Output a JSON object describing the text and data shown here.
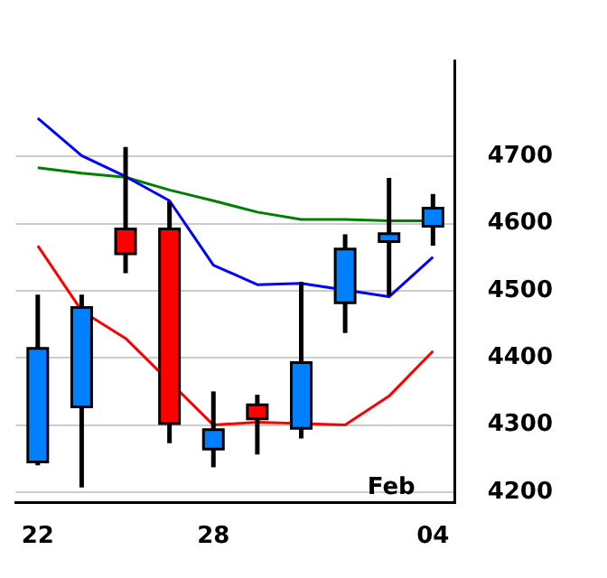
{
  "chart_data": {
    "type": "candlestick",
    "categories": [
      "22",
      null,
      null,
      null,
      "28",
      null,
      null,
      null,
      null,
      "04"
    ],
    "ohlc": [
      [
        4245,
        4494,
        4240,
        4414
      ],
      [
        4327,
        4494,
        4207,
        4475
      ],
      [
        4592,
        4714,
        4526,
        4555
      ],
      [
        4592,
        4633,
        4273,
        4302
      ],
      [
        4264,
        4350,
        4237,
        4293
      ],
      [
        4330,
        4345,
        4256,
        4309
      ],
      [
        4295,
        4513,
        4280,
        4393
      ],
      [
        4482,
        4584,
        4437,
        4562
      ],
      [
        4573,
        4668,
        4493,
        4585
      ],
      [
        4596,
        4644,
        4567,
        4623
      ]
    ],
    "colors": [
      "#0080ff",
      "#0080ff",
      "#ff0000",
      "#ff0000",
      "#0080ff",
      "#ff0000",
      "#0080ff",
      "#0080ff",
      "#0080ff",
      "#0080ff"
    ],
    "series": [
      {
        "type": "line",
        "color": "#0000ff",
        "values": [
          4757,
          4701,
          4670,
          4634,
          4538,
          4509,
          4511,
          null,
          4491,
          4550
        ]
      },
      {
        "type": "line",
        "color": "#008000",
        "values": [
          4683,
          4675,
          4669,
          4650,
          4634,
          4617,
          4606,
          4606,
          4604,
          4604
        ]
      },
      {
        "type": "line",
        "color": "#ff0000",
        "values": [
          4567,
          4470,
          4429,
          null,
          4300,
          4304,
          null,
          4300,
          4343,
          4410
        ]
      }
    ],
    "ylim": [
      4184,
      4842
    ],
    "yticks": [
      4200,
      4300,
      4400,
      4500,
      4600,
      4700
    ],
    "grid": "y",
    "legend": false,
    "marker": "none",
    "line_style": "solid",
    "annotations": [
      "Feb"
    ]
  }
}
